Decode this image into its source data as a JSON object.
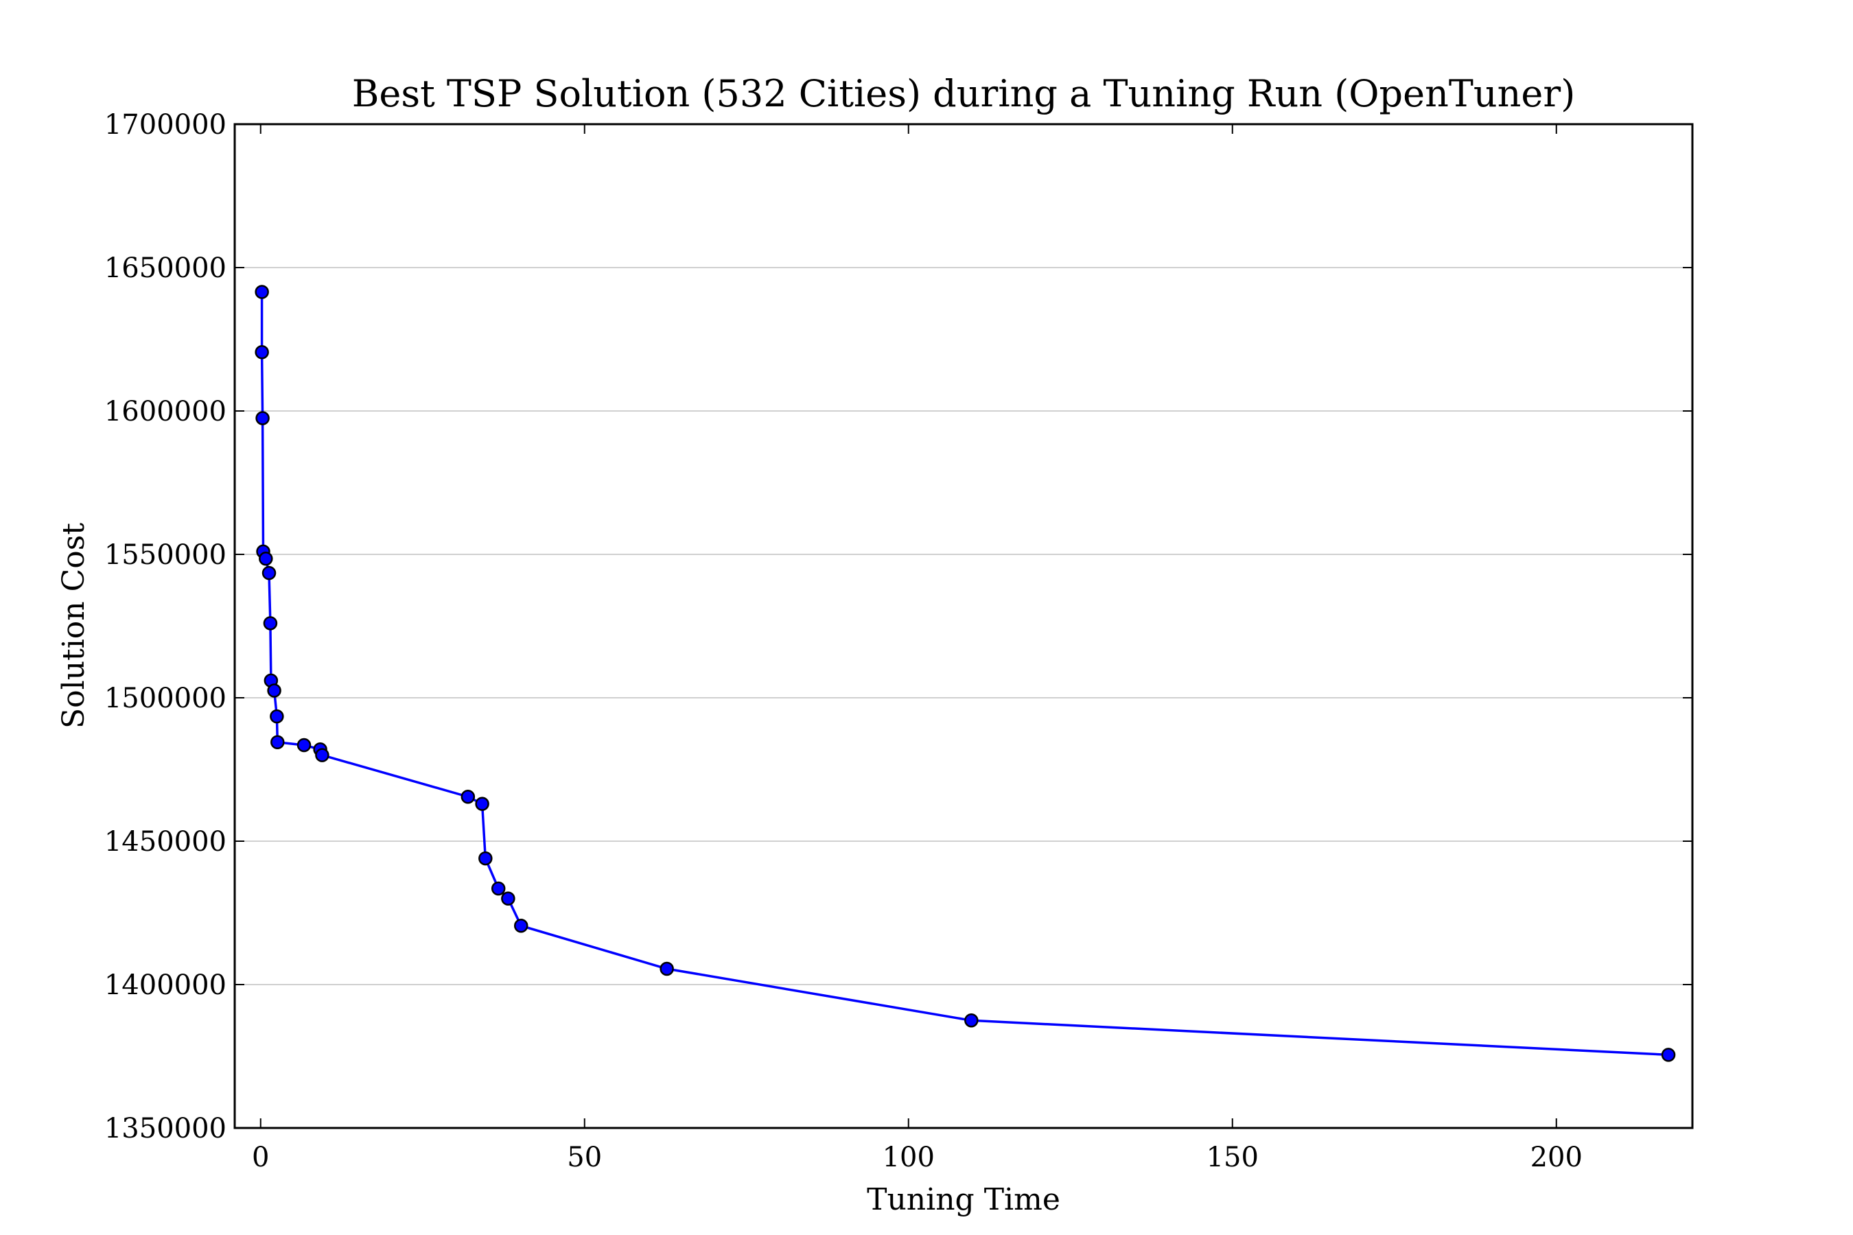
{
  "chart_data": {
    "type": "line",
    "title": "Best TSP Solution (532 Cities) during a Tuning Run (OpenTuner)",
    "xlabel": "Tuning Time",
    "ylabel": "Solution Cost",
    "xlim": [
      -4,
      221
    ],
    "ylim": [
      1350000,
      1700000
    ],
    "xticks": [
      0,
      50,
      100,
      150,
      200
    ],
    "yticks": [
      1350000,
      1400000,
      1450000,
      1500000,
      1550000,
      1600000,
      1650000,
      1700000
    ],
    "xtick_labels": [
      "0",
      "50",
      "100",
      "150",
      "200"
    ],
    "ytick_labels": [
      "1350000",
      "1400000",
      "1450000",
      "1500000",
      "1550000",
      "1600000",
      "1650000",
      "1700000"
    ],
    "grid": "horizontal",
    "line_color": "#0000ff",
    "marker_color": "#0000ff",
    "marker_edge_color": "#000000",
    "series": [
      {
        "x": [
          0.2,
          0.2,
          0.3,
          0.4,
          0.8,
          1.3,
          1.5,
          1.6,
          2.1,
          2.5,
          2.6,
          6.7,
          9.2,
          9.5,
          32.0,
          34.2,
          34.7,
          36.7,
          38.2,
          40.2,
          62.7,
          109.7,
          217.3
        ],
        "y": [
          1641500,
          1620500,
          1597500,
          1551000,
          1548500,
          1543500,
          1526000,
          1506000,
          1502500,
          1493500,
          1484500,
          1483500,
          1482000,
          1480000,
          1465500,
          1463000,
          1444000,
          1433500,
          1430000,
          1420500,
          1405500,
          1387500,
          1375500
        ]
      }
    ]
  }
}
